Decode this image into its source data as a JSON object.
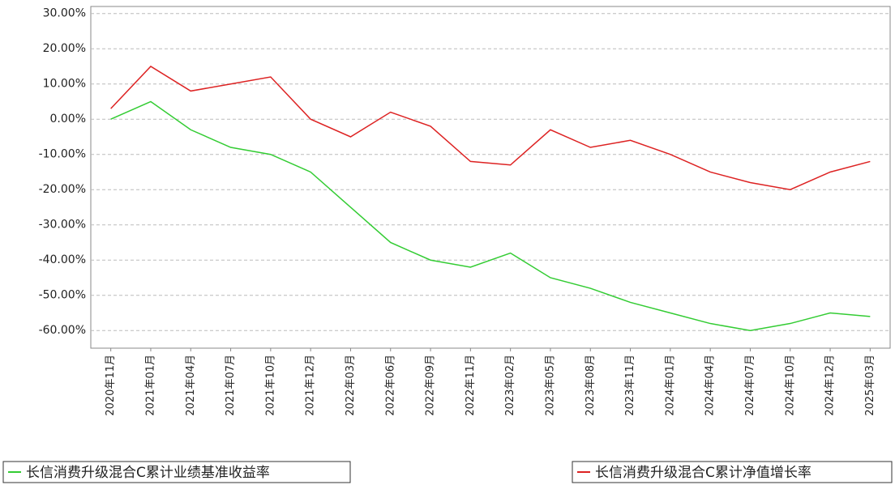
{
  "chart_data": {
    "type": "line",
    "categories": [
      "2020年11月",
      "2021年01月",
      "2021年04月",
      "2021年07月",
      "2021年10月",
      "2021年12月",
      "2022年03月",
      "2022年06月",
      "2022年09月",
      "2022年11月",
      "2023年02月",
      "2023年05月",
      "2023年08月",
      "2023年11月",
      "2024年01月",
      "2024年04月",
      "2024年07月",
      "2024年10月",
      "2024年12月",
      "2025年03月"
    ],
    "series": [
      {
        "name": "长信消费升级混合C累计业绩基准收益率",
        "color": "#33cc33",
        "values": [
          0,
          5,
          -3,
          -8,
          -10,
          -15,
          -25,
          -35,
          -40,
          -42,
          -38,
          -45,
          -48,
          -52,
          -55,
          -58,
          -60,
          -58,
          -55,
          -56
        ]
      },
      {
        "name": "长信消费升级混合C累计净值增长率",
        "color": "#dd2222",
        "values": [
          3,
          15,
          8,
          10,
          12,
          0,
          -5,
          2,
          -2,
          -12,
          -13,
          -3,
          -8,
          -6,
          -10,
          -15,
          -18,
          -20,
          -15,
          -12
        ]
      }
    ],
    "ylim": [
      -65,
      32
    ],
    "yticks": [
      {
        "value": 30,
        "label": "30.00%"
      },
      {
        "value": 20,
        "label": "20.00%"
      },
      {
        "value": 10,
        "label": "10.00%"
      },
      {
        "value": 0,
        "label": "0.00%"
      },
      {
        "value": -10,
        "label": "-10.00%"
      },
      {
        "value": -20,
        "label": "-20.00%"
      },
      {
        "value": -30,
        "label": "-30.00%"
      },
      {
        "value": -40,
        "label": "-40.00%"
      },
      {
        "value": -50,
        "label": "-50.00%"
      },
      {
        "value": -60,
        "label": "-60.00%"
      }
    ],
    "grid": true
  }
}
